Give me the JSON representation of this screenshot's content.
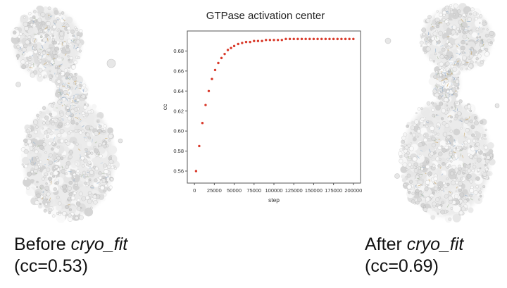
{
  "page": {
    "background": "#ffffff"
  },
  "captions": {
    "left": {
      "prefix": "Before ",
      "italic": "cryo_fit",
      "cc_line": "(cc=0.53)"
    },
    "right": {
      "prefix": "After ",
      "italic": "cryo_fit",
      "cc_line": "(cc=0.69)"
    }
  },
  "chart_data": {
    "type": "scatter",
    "title": "GTPase activation center",
    "xlabel": "step",
    "ylabel": "cc",
    "xlim": [
      -9000,
      209000
    ],
    "ylim": [
      0.548,
      0.7
    ],
    "xticks": [
      0,
      25000,
      50000,
      75000,
      100000,
      125000,
      150000,
      175000,
      200000
    ],
    "xtick_labels": [
      "0",
      "25000",
      "50000",
      "75000",
      "100000",
      "125000",
      "150000",
      "175000",
      "200000"
    ],
    "yticks": [
      0.56,
      0.58,
      0.6,
      0.62,
      0.64,
      0.66,
      0.68
    ],
    "ytick_labels": [
      "0.56",
      "0.58",
      "0.60",
      "0.62",
      "0.64",
      "0.66",
      "0.68"
    ],
    "grid": false,
    "legend": null,
    "marker_color": "#d93a2b",
    "axis_color": "#555555",
    "series": [
      {
        "name": "cc",
        "x": [
          2000,
          6000,
          10000,
          14000,
          18000,
          22000,
          26000,
          30000,
          34000,
          38000,
          42000,
          46000,
          50000,
          55000,
          60000,
          65000,
          70000,
          75000,
          80000,
          85000,
          90000,
          95000,
          100000,
          105000,
          110000,
          115000,
          120000,
          125000,
          130000,
          135000,
          140000,
          145000,
          150000,
          155000,
          160000,
          165000,
          170000,
          175000,
          180000,
          185000,
          190000,
          195000,
          200000
        ],
        "y": [
          0.56,
          0.585,
          0.608,
          0.626,
          0.64,
          0.652,
          0.661,
          0.668,
          0.673,
          0.677,
          0.681,
          0.683,
          0.685,
          0.687,
          0.688,
          0.689,
          0.689,
          0.69,
          0.69,
          0.69,
          0.691,
          0.691,
          0.691,
          0.691,
          0.691,
          0.692,
          0.692,
          0.692,
          0.692,
          0.692,
          0.692,
          0.692,
          0.692,
          0.692,
          0.692,
          0.692,
          0.692,
          0.692,
          0.692,
          0.692,
          0.692,
          0.692,
          0.692
        ]
      }
    ]
  }
}
